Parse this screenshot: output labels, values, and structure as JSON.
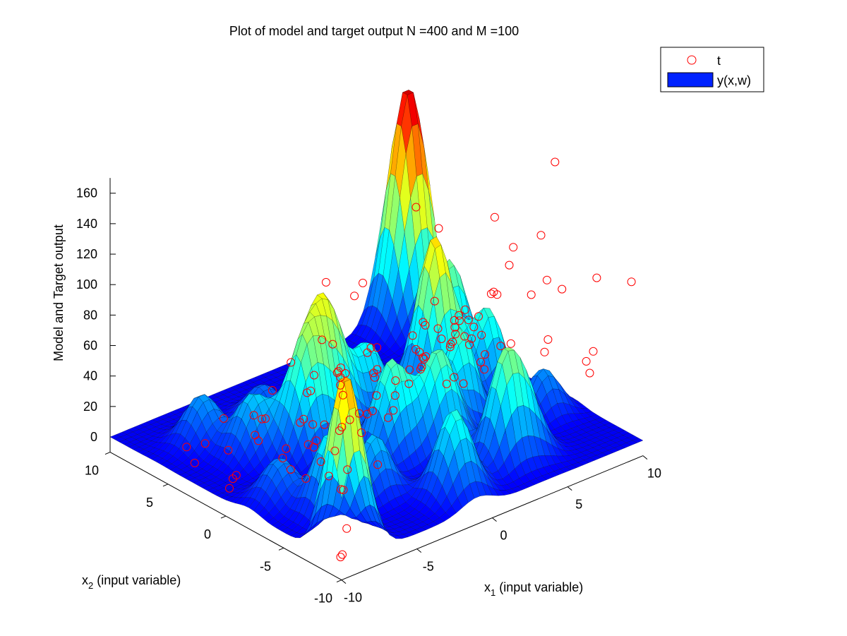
{
  "chart_data": {
    "type": "surface",
    "title": "Plot of model and target output N =400 and M =100",
    "zlabel": "Model and Target output",
    "x1label": {
      "main": "x",
      "sub": "1",
      "rest": " (input variable)"
    },
    "x2label": {
      "main": "x",
      "sub": "2",
      "rest": " (input variable)"
    },
    "x1lim": [
      -10,
      10
    ],
    "x2lim": [
      -10,
      10
    ],
    "zlim": [
      -10,
      170
    ],
    "x1ticks": [
      -10,
      -5,
      0,
      5,
      10
    ],
    "x2ticks": [
      -10,
      -5,
      0,
      5,
      10
    ],
    "zticks": [
      0,
      20,
      40,
      60,
      80,
      100,
      120,
      140,
      160
    ],
    "colormap": "jet",
    "grid": false,
    "legend": {
      "placement": "top-right",
      "entries": [
        {
          "label": "t",
          "marker": "circle",
          "color": "#ff0000"
        },
        {
          "label": "y(x,w)",
          "marker": "patch",
          "color": "#0022ff"
        }
      ]
    },
    "surface_peaks": [
      {
        "x1": 9,
        "x2": 9,
        "z": 158,
        "width": 1.1
      },
      {
        "x1": -9,
        "x2": -9,
        "z": 118,
        "width": 1.0
      },
      {
        "x1": 5,
        "x2": 1.5,
        "z": 106,
        "width": 1.0
      },
      {
        "x1": -2,
        "x2": 2,
        "z": 90,
        "width": 1.2
      },
      {
        "x1": 7.5,
        "x2": 3.5,
        "z": 72,
        "width": 1.0
      },
      {
        "x1": -4,
        "x2": 1,
        "z": 62,
        "width": 1.0
      },
      {
        "x1": 4,
        "x2": -2,
        "z": 64,
        "width": 0.9
      },
      {
        "x1": -1,
        "x2": -2.5,
        "z": 65,
        "width": 1.0
      },
      {
        "x1": 1.5,
        "x2": -3.5,
        "z": 66,
        "width": 1.0
      },
      {
        "x1": 7,
        "x2": -0.5,
        "z": 58,
        "width": 0.9
      },
      {
        "x1": 3,
        "x2": -7,
        "z": 64,
        "width": 0.9
      },
      {
        "x1": -7,
        "x2": -5,
        "z": 53,
        "width": 0.9
      },
      {
        "x1": -1,
        "x2": -8,
        "z": 57,
        "width": 1.0
      },
      {
        "x1": -4,
        "x2": -5,
        "z": 40,
        "width": 0.9
      },
      {
        "x1": 1,
        "x2": 2,
        "z": 45,
        "width": 1.0
      },
      {
        "x1": 4.5,
        "x2": -7,
        "z": 40,
        "width": 0.9
      },
      {
        "x1": -6,
        "x2": 3,
        "z": 40,
        "width": 1.0
      },
      {
        "x1": -7,
        "x2": 6,
        "z": 32,
        "width": 1.0
      },
      {
        "x1": -8,
        "x2": -2,
        "z": 28,
        "width": 1.0
      },
      {
        "x1": 2,
        "x2": 4,
        "z": 24,
        "width": 1.0
      },
      {
        "x1": 8,
        "x2": -4,
        "z": 30,
        "width": 0.9
      },
      {
        "x1": -3,
        "x2": 6,
        "z": 22,
        "width": 1.0
      }
    ],
    "target_points": [
      {
        "x1": -9.5,
        "x2": -8,
        "z": 175
      },
      {
        "x1": -8,
        "x2": -8.5,
        "z": 162
      },
      {
        "x1": -9,
        "x2": -7,
        "z": 131
      },
      {
        "x1": -6.5,
        "x2": -8.5,
        "z": 122
      },
      {
        "x1": -8.7,
        "x2": -8.2,
        "z": 105
      },
      {
        "x1": -7,
        "x2": -6,
        "z": 94
      },
      {
        "x1": -5.5,
        "x2": -7,
        "z": 92
      },
      {
        "x1": -4.5,
        "x2": -7.5,
        "z": 88
      },
      {
        "x1": -5,
        "x2": -6.5,
        "z": 76
      },
      {
        "x1": -6,
        "x2": -5.5,
        "z": 60
      },
      {
        "x1": -5,
        "x2": -5,
        "z": 58
      },
      {
        "x1": -3.5,
        "x2": -6,
        "z": 58
      },
      {
        "x1": -9,
        "x2": -9.2,
        "z": 55
      },
      {
        "x1": -9.5,
        "x2": -9.5,
        "z": 45
      },
      {
        "x1": -8.5,
        "x2": -8,
        "z": 35
      },
      {
        "x1": -9.2,
        "x2": -9.4,
        "z": 18
      },
      {
        "x1": -9.8,
        "x2": -9.8,
        "z": 5
      },
      {
        "x1": -9.3,
        "x2": -9,
        "z": -2
      },
      {
        "x1": -7,
        "x2": -5,
        "z": 25
      },
      {
        "x1": -6,
        "x2": -3,
        "z": 22
      },
      {
        "x1": -4,
        "x2": -2,
        "z": 30
      },
      {
        "x1": -5,
        "x2": -1,
        "z": 34
      },
      {
        "x1": -3,
        "x2": -4,
        "z": 12
      },
      {
        "x1": -2,
        "x2": -6,
        "z": 92
      },
      {
        "x1": -1,
        "x2": -5,
        "z": 82
      },
      {
        "x1": 0,
        "x2": -4,
        "z": 70
      },
      {
        "x1": -2.5,
        "x2": -3,
        "z": 66
      },
      {
        "x1": -1.5,
        "x2": -2,
        "z": 60
      },
      {
        "x1": 0.5,
        "x2": -7,
        "z": 112
      },
      {
        "x1": 1.5,
        "x2": -6,
        "z": 97
      },
      {
        "x1": 2,
        "x2": -5,
        "z": 80
      },
      {
        "x1": 3,
        "x2": -6,
        "z": 108
      },
      {
        "x1": -0.5,
        "x2": -3.5,
        "z": 62
      },
      {
        "x1": 1,
        "x2": -2.5,
        "z": 52
      },
      {
        "x1": 2,
        "x2": -3,
        "z": 70
      },
      {
        "x1": 1,
        "x2": -4,
        "z": 85
      },
      {
        "x1": 3,
        "x2": -4.5,
        "z": 80
      },
      {
        "x1": 2.5,
        "x2": -1,
        "z": 48
      },
      {
        "x1": 4,
        "x2": -3,
        "z": 62
      },
      {
        "x1": 3.5,
        "x2": -1.5,
        "z": 28
      },
      {
        "x1": 0,
        "x2": -1,
        "z": 18
      },
      {
        "x1": -1,
        "x2": 0,
        "z": 8
      },
      {
        "x1": -2,
        "x2": 1,
        "z": -4
      },
      {
        "x1": -1,
        "x2": 2,
        "z": 40
      },
      {
        "x1": -3,
        "x2": 2,
        "z": 0
      },
      {
        "x1": 0,
        "x2": 3,
        "z": -5
      },
      {
        "x1": 1,
        "x2": 4,
        "z": 22
      },
      {
        "x1": 0.5,
        "x2": 1,
        "z": 12
      },
      {
        "x1": 2,
        "x2": 1,
        "z": 16
      },
      {
        "x1": 3,
        "x2": 0,
        "z": 35
      },
      {
        "x1": 4,
        "x2": 1,
        "z": 54
      },
      {
        "x1": 4.5,
        "x2": -0.5,
        "z": 44
      },
      {
        "x1": 5,
        "x2": -1,
        "z": 20
      },
      {
        "x1": 4,
        "x2": -5,
        "z": 150
      },
      {
        "x1": 6,
        "x2": -4,
        "z": 118
      },
      {
        "x1": 6.5,
        "x2": -3,
        "z": 100
      },
      {
        "x1": 7,
        "x2": -1,
        "z": 72
      },
      {
        "x1": 6,
        "x2": -1,
        "z": 60
      },
      {
        "x1": 5.5,
        "x2": 0,
        "z": 55
      },
      {
        "x1": 6,
        "x2": 1,
        "z": 40
      },
      {
        "x1": 7,
        "x2": 2,
        "z": 44
      },
      {
        "x1": 8,
        "x2": 0,
        "z": 62
      },
      {
        "x1": 7.5,
        "x2": 3,
        "z": 30
      },
      {
        "x1": 8.5,
        "x2": 2,
        "z": 25
      },
      {
        "x1": 8,
        "x2": -5,
        "z": 170
      },
      {
        "x1": 9,
        "x2": -3,
        "z": 80
      },
      {
        "x1": 9.5,
        "x2": -1,
        "z": 60
      },
      {
        "x1": 9,
        "x2": 1,
        "z": 20
      },
      {
        "x1": 9.5,
        "x2": 3,
        "z": 4
      },
      {
        "x1": 10,
        "x2": 5,
        "z": 0
      },
      {
        "x1": 9,
        "x2": 5,
        "z": 20
      },
      {
        "x1": 8.5,
        "x2": 4.5,
        "z": 10
      },
      {
        "x1": 10,
        "x2": 8,
        "z": 16
      },
      {
        "x1": 9.5,
        "x2": 7,
        "z": 70
      },
      {
        "x1": 10,
        "x2": 9,
        "z": -2
      },
      {
        "x1": 8,
        "x2": 7,
        "z": 90
      },
      {
        "x1": 6,
        "x2": 9,
        "z": 40
      },
      {
        "x1": 7,
        "x2": 6,
        "z": 14
      },
      {
        "x1": 5,
        "x2": 7,
        "z": 10
      },
      {
        "x1": 4,
        "x2": 6,
        "z": 15
      },
      {
        "x1": 3,
        "x2": 7,
        "z": 5
      },
      {
        "x1": 2,
        "x2": 8,
        "z": 0
      },
      {
        "x1": 2,
        "x2": 6,
        "z": 10
      },
      {
        "x1": 1,
        "x2": 7,
        "z": -2
      },
      {
        "x1": 0,
        "x2": 6,
        "z": 5
      },
      {
        "x1": -1,
        "x2": 5,
        "z": -4
      },
      {
        "x1": -2,
        "x2": 4,
        "z": 2
      },
      {
        "x1": -2,
        "x2": 7,
        "z": -8
      },
      {
        "x1": -3,
        "x2": 6,
        "z": 0
      },
      {
        "x1": -4,
        "x2": 5,
        "z": -6
      },
      {
        "x1": -5,
        "x2": 4,
        "z": 6
      },
      {
        "x1": -6,
        "x2": 5,
        "z": -4
      },
      {
        "x1": -7,
        "x2": 3,
        "z": -8
      },
      {
        "x1": -8,
        "x2": 2,
        "z": -2
      },
      {
        "x1": -6,
        "x2": 0,
        "z": 18
      },
      {
        "x1": -7,
        "x2": -1,
        "z": 20
      },
      {
        "x1": -8,
        "x2": -3,
        "z": 25
      },
      {
        "x1": -5,
        "x2": -2,
        "z": 38
      },
      {
        "x1": -3,
        "x2": -1,
        "z": 45
      },
      {
        "x1": -4,
        "x2": 0,
        "z": 15
      },
      {
        "x1": -2,
        "x2": 8,
        "z": -10
      },
      {
        "x1": 0,
        "x2": 9,
        "z": -6
      },
      {
        "x1": 2,
        "x2": 10,
        "z": 0
      },
      {
        "x1": 4,
        "x2": 9,
        "z": 8
      },
      {
        "x1": -4,
        "x2": 8,
        "z": -4
      },
      {
        "x1": -6,
        "x2": 7,
        "z": -8
      },
      {
        "x1": -8,
        "x2": 6,
        "z": 2
      },
      {
        "x1": -9,
        "x2": 4,
        "z": 4
      },
      {
        "x1": -9,
        "x2": 1,
        "z": 0
      },
      {
        "x1": -8,
        "x2": -5,
        "z": 48
      },
      {
        "x1": -7,
        "x2": -3,
        "z": 15
      },
      {
        "x1": -6,
        "x2": -7,
        "z": 70
      },
      {
        "x1": -3,
        "x2": -8,
        "z": 98
      },
      {
        "x1": -4,
        "x2": -8,
        "z": 86
      },
      {
        "x1": -2,
        "x2": -9,
        "z": 108
      },
      {
        "x1": -1,
        "x2": -8,
        "z": 78
      },
      {
        "x1": 0,
        "x2": -9,
        "z": 88
      },
      {
        "x1": 1,
        "x2": -8,
        "z": 75
      },
      {
        "x1": 2,
        "x2": -9,
        "z": 92
      },
      {
        "x1": 4,
        "x2": -9,
        "z": 155
      },
      {
        "x1": 5,
        "x2": -8,
        "z": 70
      },
      {
        "x1": 6,
        "x2": -7,
        "z": 70
      },
      {
        "x1": 7,
        "x2": -9,
        "z": 60
      },
      {
        "x1": 8,
        "x2": -8,
        "z": 44
      },
      {
        "x1": 9,
        "x2": -7,
        "z": 50
      },
      {
        "x1": 10,
        "x2": -9,
        "z": 100
      },
      {
        "x1": 10,
        "x2": -6,
        "z": 90
      },
      {
        "x1": 10,
        "x2": -3,
        "z": 70
      }
    ]
  }
}
